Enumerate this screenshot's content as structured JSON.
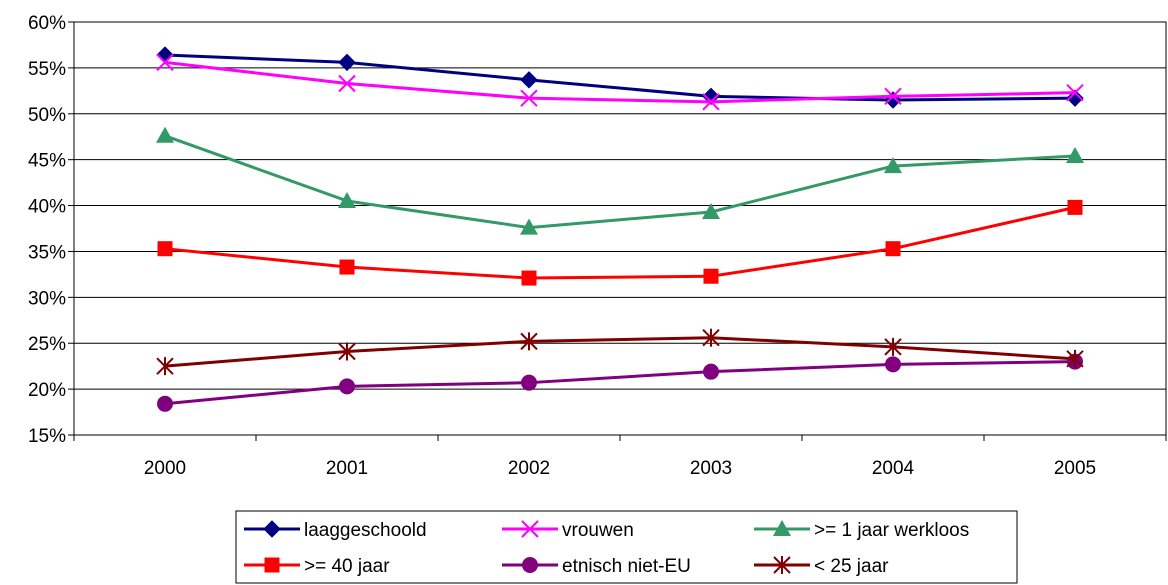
{
  "chart_data": {
    "type": "line",
    "categories": [
      "2000",
      "2001",
      "2002",
      "2003",
      "2004",
      "2005"
    ],
    "y_ticks": [
      "15%",
      "20%",
      "25%",
      "30%",
      "35%",
      "40%",
      "45%",
      "50%",
      "55%",
      "60%"
    ],
    "ylim": [
      15,
      60
    ],
    "grid": true,
    "legend_position": "bottom",
    "series": [
      {
        "name": "laaggeschoold",
        "color": "#000080",
        "marker": "diamond",
        "values": [
          56.4,
          55.6,
          53.7,
          51.9,
          51.5,
          51.7
        ]
      },
      {
        "name": "vrouwen",
        "color": "#FF00FF",
        "marker": "x",
        "values": [
          55.6,
          53.3,
          51.7,
          51.3,
          51.9,
          52.3
        ]
      },
      {
        "name": ">= 1 jaar werkloos",
        "color": "#339966",
        "marker": "triangle",
        "values": [
          47.6,
          40.5,
          37.6,
          39.3,
          44.3,
          45.4
        ]
      },
      {
        "name": ">= 40 jaar",
        "color": "#FF0000",
        "marker": "square",
        "values": [
          35.3,
          33.3,
          32.1,
          32.3,
          35.3,
          39.8
        ]
      },
      {
        "name": "etnisch niet-EU",
        "color": "#800080",
        "marker": "circle",
        "values": [
          18.4,
          20.3,
          20.7,
          21.9,
          22.7,
          23.0
        ]
      },
      {
        "name": "< 25 jaar",
        "color": "#800000",
        "marker": "star",
        "values": [
          22.5,
          24.1,
          25.2,
          25.6,
          24.6,
          23.3
        ]
      }
    ]
  }
}
